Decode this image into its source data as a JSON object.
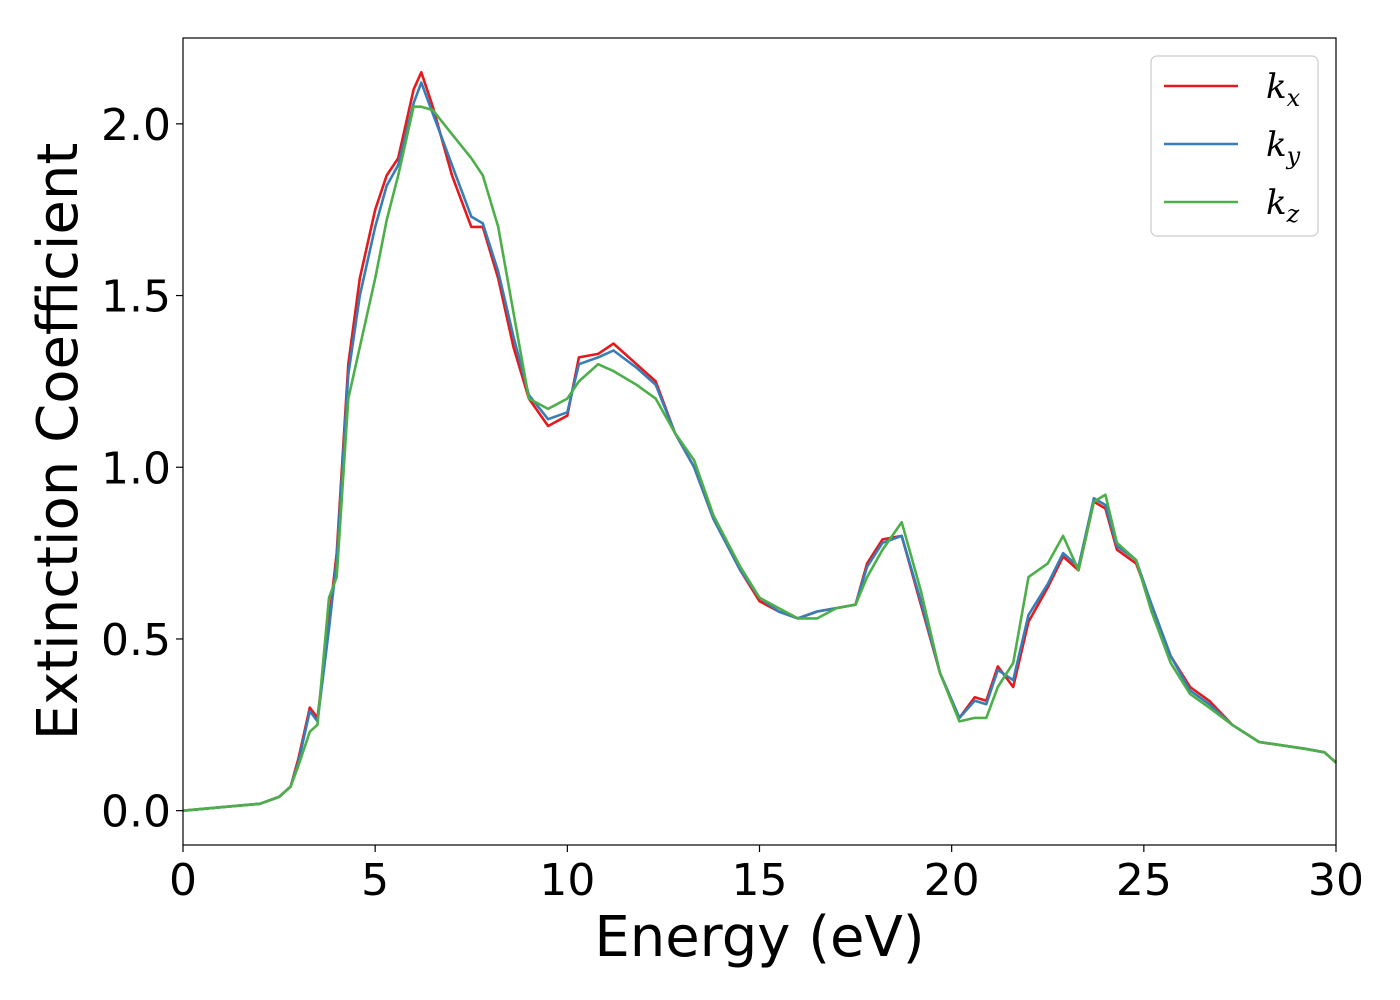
{
  "chart_data": {
    "type": "line",
    "title": "",
    "xlabel": "Energy (eV)",
    "ylabel": "Extinction Coefficient",
    "xlim": [
      0,
      30
    ],
    "ylim": [
      -0.1,
      2.25
    ],
    "xticks": [
      0,
      5,
      10,
      15,
      20,
      25,
      30
    ],
    "xtick_labels": [
      "0",
      "5",
      "10",
      "15",
      "20",
      "25",
      "30"
    ],
    "yticks": [
      0.0,
      0.5,
      1.0,
      1.5,
      2.0
    ],
    "ytick_labels": [
      "0.0",
      "0.5",
      "1.0",
      "1.5",
      "2.0"
    ],
    "grid": false,
    "legend_position": "top-right",
    "x": [
      0,
      1,
      2,
      2.5,
      2.8,
      3.0,
      3.3,
      3.5,
      3.8,
      4.0,
      4.3,
      4.6,
      5.0,
      5.3,
      5.6,
      6.0,
      6.2,
      6.5,
      7.0,
      7.5,
      7.8,
      8.2,
      8.6,
      9.0,
      9.5,
      10.0,
      10.3,
      10.8,
      11.2,
      11.8,
      12.3,
      12.8,
      13.3,
      13.8,
      14.5,
      15.0,
      15.5,
      16.0,
      16.5,
      17.0,
      17.5,
      17.8,
      18.2,
      18.7,
      19.2,
      19.7,
      20.2,
      20.6,
      20.9,
      21.2,
      21.6,
      22.0,
      22.5,
      22.9,
      23.3,
      23.7,
      24.0,
      24.3,
      24.8,
      25.2,
      25.7,
      26.2,
      26.7,
      27.3,
      28.0,
      28.6,
      29.2,
      29.7,
      30.0
    ],
    "series": [
      {
        "name": "k_x",
        "color": "#e41a1c",
        "values": [
          0.0,
          0.01,
          0.02,
          0.04,
          0.07,
          0.15,
          0.3,
          0.27,
          0.55,
          0.75,
          1.3,
          1.55,
          1.75,
          1.85,
          1.9,
          2.1,
          2.15,
          2.05,
          1.85,
          1.7,
          1.7,
          1.55,
          1.35,
          1.2,
          1.12,
          1.15,
          1.32,
          1.33,
          1.36,
          1.3,
          1.25,
          1.1,
          1.0,
          0.85,
          0.7,
          0.61,
          0.58,
          0.56,
          0.58,
          0.59,
          0.6,
          0.72,
          0.79,
          0.8,
          0.6,
          0.4,
          0.27,
          0.33,
          0.32,
          0.42,
          0.36,
          0.55,
          0.65,
          0.74,
          0.7,
          0.9,
          0.88,
          0.76,
          0.72,
          0.6,
          0.45,
          0.36,
          0.32,
          0.25,
          0.2,
          0.19,
          0.18,
          0.17,
          0.14
        ]
      },
      {
        "name": "k_y",
        "color": "#377eb8",
        "values": [
          0.0,
          0.01,
          0.02,
          0.04,
          0.07,
          0.14,
          0.29,
          0.26,
          0.53,
          0.73,
          1.27,
          1.5,
          1.7,
          1.82,
          1.88,
          2.06,
          2.12,
          2.03,
          1.88,
          1.73,
          1.71,
          1.57,
          1.38,
          1.21,
          1.14,
          1.16,
          1.3,
          1.32,
          1.34,
          1.29,
          1.24,
          1.1,
          1.0,
          0.85,
          0.7,
          0.62,
          0.58,
          0.56,
          0.58,
          0.59,
          0.6,
          0.71,
          0.78,
          0.8,
          0.61,
          0.4,
          0.27,
          0.32,
          0.31,
          0.41,
          0.38,
          0.57,
          0.66,
          0.75,
          0.71,
          0.91,
          0.89,
          0.77,
          0.73,
          0.6,
          0.45,
          0.35,
          0.31,
          0.25,
          0.2,
          0.19,
          0.18,
          0.17,
          0.14
        ]
      },
      {
        "name": "k_z",
        "color": "#4daf4a",
        "values": [
          0.0,
          0.01,
          0.02,
          0.04,
          0.07,
          0.13,
          0.23,
          0.25,
          0.62,
          0.68,
          1.2,
          1.35,
          1.55,
          1.72,
          1.85,
          2.05,
          2.05,
          2.04,
          1.97,
          1.9,
          1.85,
          1.7,
          1.45,
          1.2,
          1.17,
          1.2,
          1.25,
          1.3,
          1.28,
          1.24,
          1.2,
          1.1,
          1.02,
          0.86,
          0.71,
          0.62,
          0.59,
          0.56,
          0.56,
          0.59,
          0.6,
          0.68,
          0.76,
          0.84,
          0.64,
          0.4,
          0.26,
          0.27,
          0.27,
          0.36,
          0.43,
          0.68,
          0.72,
          0.8,
          0.7,
          0.9,
          0.92,
          0.78,
          0.73,
          0.58,
          0.43,
          0.34,
          0.3,
          0.25,
          0.2,
          0.19,
          0.18,
          0.17,
          0.14
        ]
      }
    ]
  },
  "legend": {
    "entries": [
      {
        "base": "k",
        "sub": "x"
      },
      {
        "base": "k",
        "sub": "y"
      },
      {
        "base": "k",
        "sub": "z"
      }
    ]
  }
}
